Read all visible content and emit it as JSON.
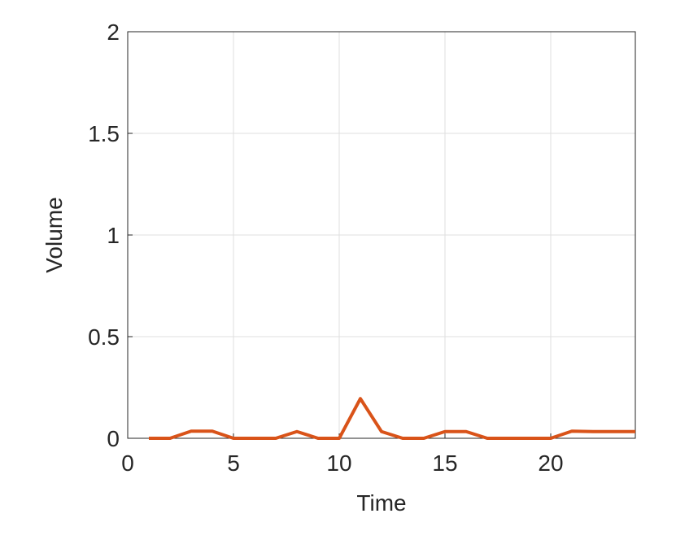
{
  "chart_data": {
    "type": "line",
    "x_label": "Time",
    "y_label": "Volume",
    "x": [
      1,
      2,
      3,
      4,
      5,
      6,
      7,
      8,
      9,
      10,
      11,
      12,
      13,
      14,
      15,
      16,
      17,
      18,
      19,
      20,
      21,
      22,
      23,
      24
    ],
    "series": [
      {
        "name": "Volume",
        "color": "#d95319",
        "values": [
          0,
          0,
          0.035,
          0.035,
          0,
          0,
          0,
          0.033,
          0,
          0,
          0.195,
          0.033,
          0,
          0,
          0.033,
          0.033,
          0,
          0,
          0,
          0,
          0.035,
          0.033,
          0.033,
          0.033
        ]
      }
    ],
    "xlim": [
      0,
      24
    ],
    "ylim": [
      0,
      2
    ],
    "xticks": [
      0,
      5,
      10,
      15,
      20
    ],
    "yticks": [
      0,
      0.5,
      1,
      1.5,
      2
    ],
    "grid": true
  }
}
